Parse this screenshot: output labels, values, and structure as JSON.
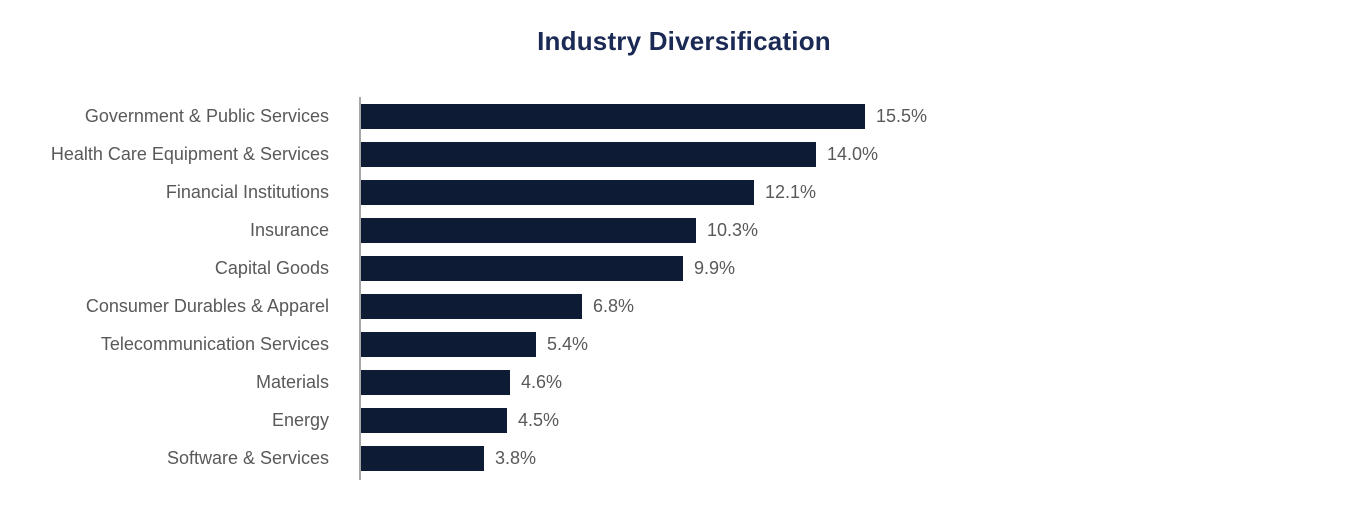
{
  "chart_data": {
    "type": "bar",
    "orientation": "horizontal",
    "title": "Industry Diversification",
    "categories": [
      "Government & Public Services",
      "Health Care Equipment & Services",
      "Financial Institutions",
      "Insurance",
      "Capital Goods",
      "Consumer Durables & Apparel",
      "Telecommunication Services",
      "Materials",
      "Energy",
      "Software & Services"
    ],
    "values": [
      15.5,
      14.0,
      12.1,
      10.3,
      9.9,
      6.8,
      5.4,
      4.6,
      4.5,
      3.8
    ],
    "value_labels": [
      "15.5%",
      "14.0%",
      "12.1%",
      "10.3%",
      "9.9%",
      "6.8%",
      "5.4%",
      "4.6%",
      "4.5%",
      "3.8%"
    ],
    "xlabel": "",
    "ylabel": "",
    "xlim": [
      0,
      15.5
    ],
    "grid": false,
    "legend": false,
    "colors": {
      "bar": "#0e1b35",
      "title": "#1b2a55",
      "labels": "#595959",
      "axis_line": "#a6a6a6",
      "background": "#ffffff"
    }
  }
}
